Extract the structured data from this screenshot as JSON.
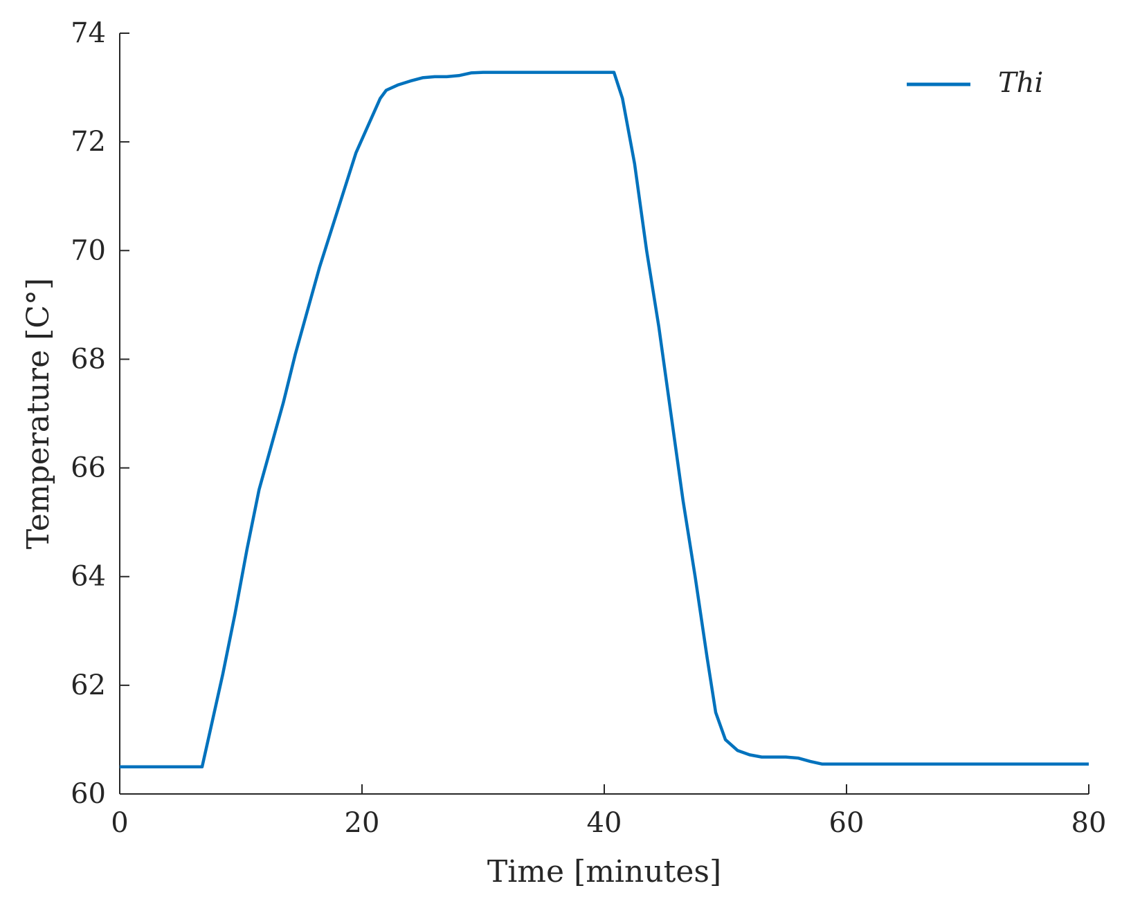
{
  "chart_data": {
    "type": "line",
    "title": "",
    "xlabel": "Time [minutes]",
    "ylabel": "Temperature [C°]",
    "xlim": [
      0,
      80
    ],
    "ylim": [
      60,
      74
    ],
    "xticks": [
      0,
      20,
      40,
      60,
      80
    ],
    "yticks": [
      60,
      62,
      64,
      66,
      68,
      70,
      72,
      74
    ],
    "xtick_labels": [
      "0",
      "20",
      "40",
      "60",
      "80"
    ],
    "ytick_labels": [
      "60",
      "62",
      "64",
      "66",
      "68",
      "70",
      "72",
      "74"
    ],
    "grid": false,
    "legend_position": "top-right",
    "series": [
      {
        "name": "Thi",
        "color": "#0072BD",
        "x": [
          0,
          2,
          4,
          6,
          6.8,
          7.5,
          8.5,
          9.5,
          10.5,
          11.5,
          12.5,
          13.5,
          14.5,
          15.5,
          16.5,
          17.5,
          18.5,
          19.5,
          20.5,
          21.5,
          22,
          23,
          24,
          25,
          26,
          27,
          28,
          29,
          30,
          35,
          40,
          40.8,
          41.5,
          42.5,
          43.5,
          44.5,
          45.5,
          46.5,
          47.5,
          48.5,
          49.2,
          50,
          51,
          52,
          53,
          55,
          56,
          57,
          58,
          60,
          70,
          80
        ],
        "y": [
          60.5,
          60.5,
          60.5,
          60.5,
          60.5,
          61.2,
          62.2,
          63.3,
          64.5,
          65.6,
          66.4,
          67.2,
          68.1,
          68.9,
          69.7,
          70.4,
          71.1,
          71.8,
          72.3,
          72.8,
          72.95,
          73.05,
          73.12,
          73.18,
          73.2,
          73.2,
          73.22,
          73.27,
          73.28,
          73.28,
          73.28,
          73.28,
          72.8,
          71.6,
          70.0,
          68.6,
          67.0,
          65.4,
          64.0,
          62.5,
          61.5,
          61.0,
          60.8,
          60.72,
          60.68,
          60.68,
          60.66,
          60.6,
          60.55,
          60.55,
          60.55,
          60.55
        ]
      }
    ]
  }
}
